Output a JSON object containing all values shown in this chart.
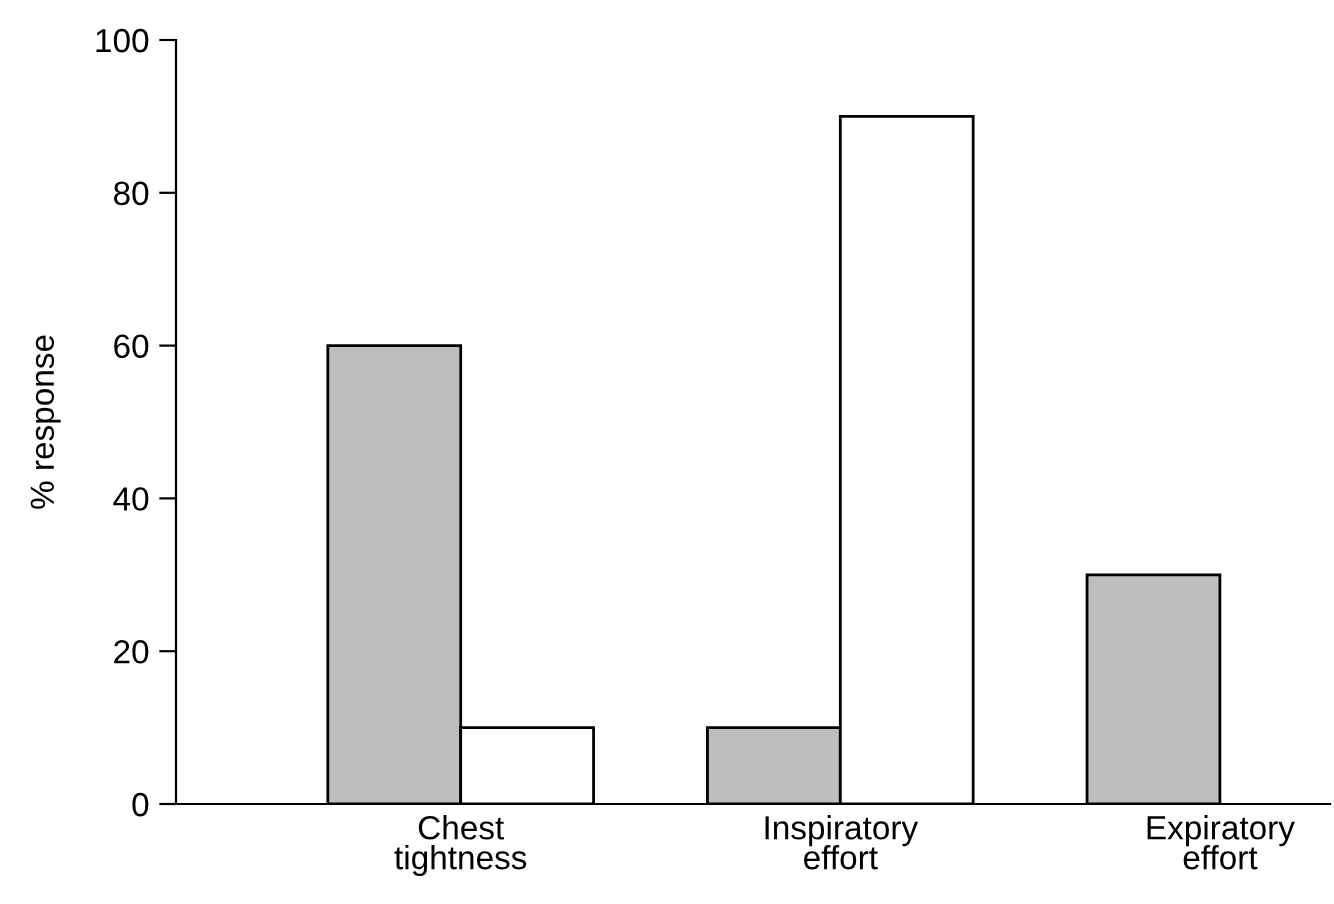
{
  "chart_data": {
    "type": "bar",
    "ylabel": "% response",
    "categories": [
      "Chest\ntightness",
      "Inspiratory\neffort",
      "Expiratory\neffort"
    ],
    "series": [
      {
        "color": "#bebebe",
        "values": [
          60,
          10,
          30
        ]
      },
      {
        "color": "#ffffff",
        "values": [
          10,
          90,
          null
        ]
      }
    ],
    "ylim": [
      0,
      100
    ],
    "yticks": [
      0,
      20,
      40,
      60,
      80,
      100
    ],
    "grid": false,
    "legend": false
  }
}
